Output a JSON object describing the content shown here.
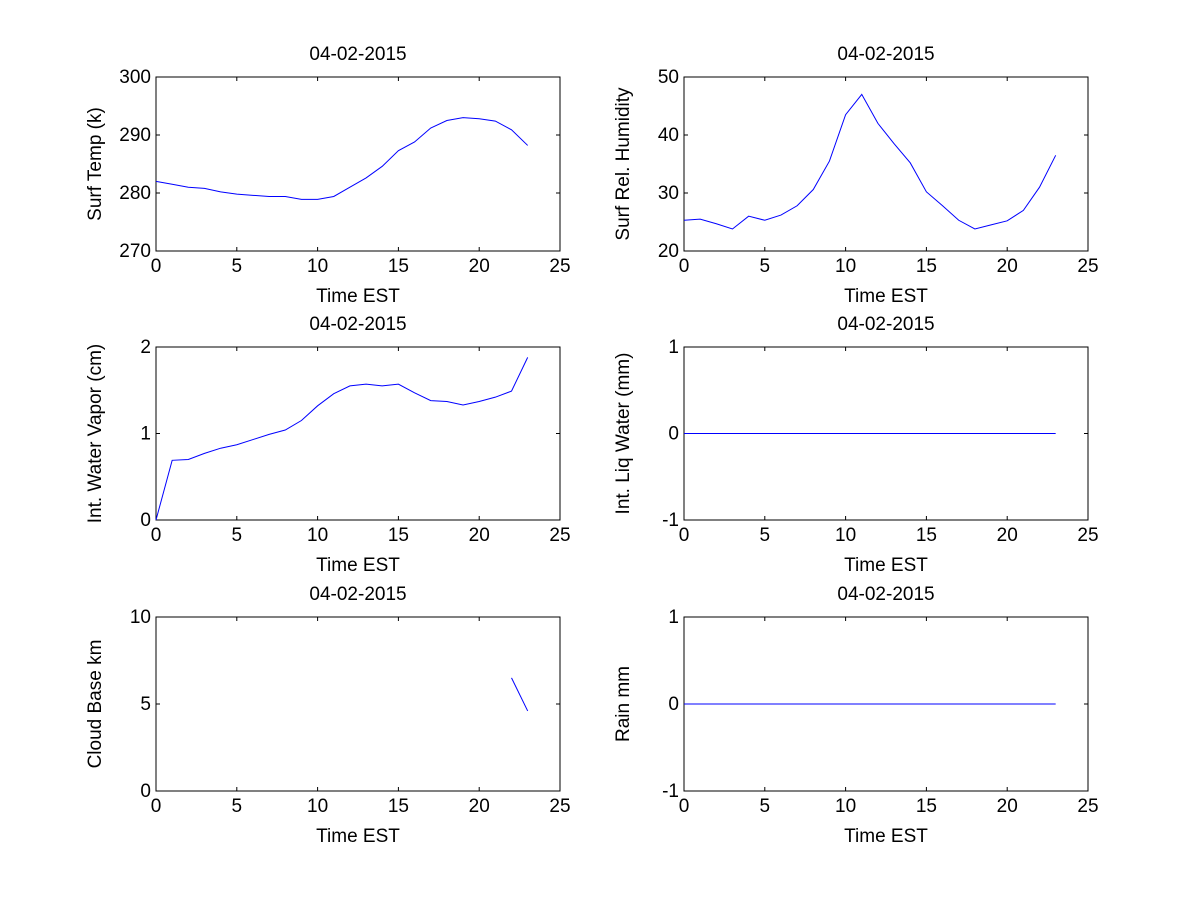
{
  "figure": {
    "background": "#ffffff",
    "line_color": "#0000ff"
  },
  "chart_data": [
    {
      "type": "line",
      "title": "04-02-2015",
      "xlabel": "Time EST",
      "ylabel": "Surf Temp (k)",
      "xlim": [
        0,
        25
      ],
      "ylim": [
        270,
        300
      ],
      "xticks": [
        0,
        5,
        10,
        15,
        20,
        25
      ],
      "yticks": [
        270,
        280,
        290,
        300
      ],
      "x": [
        0,
        1,
        2,
        3,
        4,
        5,
        6,
        7,
        8,
        9,
        10,
        11,
        12,
        13,
        14,
        15,
        16,
        17,
        18,
        19,
        20,
        21,
        22,
        23
      ],
      "y": [
        282.0,
        281.5,
        281.0,
        280.8,
        280.2,
        279.8,
        279.6,
        279.4,
        279.4,
        278.9,
        278.9,
        279.4,
        281.0,
        282.6,
        284.6,
        287.3,
        288.8,
        291.2,
        292.5,
        293.0,
        292.8,
        292.4,
        290.9,
        288.2
      ],
      "grid": false,
      "legend": false
    },
    {
      "type": "line",
      "title": "04-02-2015",
      "xlabel": "Time EST",
      "ylabel": "Surf Rel. Humidity",
      "xlim": [
        0,
        25
      ],
      "ylim": [
        20,
        50
      ],
      "xticks": [
        0,
        5,
        10,
        15,
        20,
        25
      ],
      "yticks": [
        20,
        30,
        40,
        50
      ],
      "x": [
        0,
        1,
        2,
        3,
        4,
        5,
        6,
        7,
        8,
        9,
        10,
        11,
        12,
        13,
        14,
        15,
        16,
        17,
        18,
        19,
        20,
        21,
        22,
        23
      ],
      "y": [
        25.3,
        25.5,
        24.7,
        23.8,
        26.0,
        25.3,
        26.2,
        27.8,
        30.6,
        35.5,
        43.5,
        47.0,
        42.0,
        38.5,
        35.2,
        30.2,
        27.8,
        25.3,
        23.8,
        24.5,
        25.2,
        27.0,
        31.0,
        36.5
      ],
      "grid": false,
      "legend": false
    },
    {
      "type": "line",
      "title": "04-02-2015",
      "xlabel": "Time EST",
      "ylabel": "Int. Water Vapor (cm)",
      "xlim": [
        0,
        25
      ],
      "ylim": [
        0,
        2
      ],
      "xticks": [
        0,
        5,
        10,
        15,
        20,
        25
      ],
      "yticks": [
        0,
        1,
        2
      ],
      "x": [
        0,
        1,
        2,
        3,
        4,
        5,
        6,
        7,
        8,
        9,
        10,
        11,
        12,
        13,
        14,
        15,
        16,
        17,
        18,
        19,
        20,
        21,
        22,
        23
      ],
      "y": [
        0.0,
        0.69,
        0.7,
        0.77,
        0.83,
        0.87,
        0.93,
        0.99,
        1.04,
        1.15,
        1.32,
        1.46,
        1.55,
        1.57,
        1.55,
        1.57,
        1.47,
        1.38,
        1.37,
        1.33,
        1.37,
        1.42,
        1.49,
        1.88
      ],
      "grid": false,
      "legend": false
    },
    {
      "type": "line",
      "title": "04-02-2015",
      "xlabel": "Time EST",
      "ylabel": "Int. Liq Water (mm)",
      "xlim": [
        0,
        25
      ],
      "ylim": [
        -1,
        1
      ],
      "xticks": [
        0,
        5,
        10,
        15,
        20,
        25
      ],
      "yticks": [
        -1,
        0,
        1
      ],
      "x": [
        0,
        1,
        2,
        3,
        4,
        5,
        6,
        7,
        8,
        9,
        10,
        11,
        12,
        13,
        14,
        15,
        16,
        17,
        18,
        19,
        20,
        21,
        22,
        23
      ],
      "y": [
        0,
        0,
        0,
        0,
        0,
        0,
        0,
        0,
        0,
        0,
        0,
        0,
        0,
        0,
        0,
        0,
        0,
        0,
        0,
        0,
        0,
        0,
        0,
        0
      ],
      "grid": false,
      "legend": false
    },
    {
      "type": "line",
      "title": "04-02-2015",
      "xlabel": "Time EST",
      "ylabel": "Cloud Base km",
      "xlim": [
        0,
        25
      ],
      "ylim": [
        0,
        10
      ],
      "xticks": [
        0,
        5,
        10,
        15,
        20,
        25
      ],
      "yticks": [
        0,
        5,
        10
      ],
      "x": [
        22,
        23
      ],
      "y": [
        6.5,
        4.6
      ],
      "grid": false,
      "legend": false
    },
    {
      "type": "line",
      "title": "04-02-2015",
      "xlabel": "Time EST",
      "ylabel": "Rain mm",
      "xlim": [
        0,
        25
      ],
      "ylim": [
        -1,
        1
      ],
      "xticks": [
        0,
        5,
        10,
        15,
        20,
        25
      ],
      "yticks": [
        -1,
        0,
        1
      ],
      "x": [
        0,
        1,
        2,
        3,
        4,
        5,
        6,
        7,
        8,
        9,
        10,
        11,
        12,
        13,
        14,
        15,
        16,
        17,
        18,
        19,
        20,
        21,
        22,
        23
      ],
      "y": [
        0,
        0,
        0,
        0,
        0,
        0,
        0,
        0,
        0,
        0,
        0,
        0,
        0,
        0,
        0,
        0,
        0,
        0,
        0,
        0,
        0,
        0,
        0,
        0
      ],
      "grid": false,
      "legend": false
    }
  ]
}
